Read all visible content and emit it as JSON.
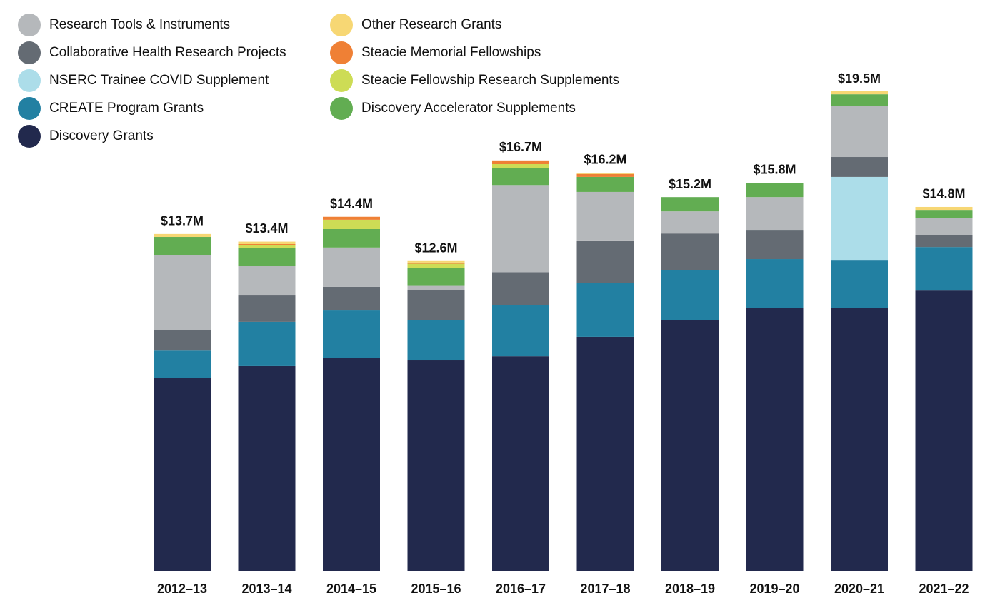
{
  "chart_data": {
    "type": "stacked_bar",
    "categories": [
      "2012–13",
      "2013–14",
      "2014–15",
      "2015–16",
      "2016–17",
      "2017–18",
      "2018–19",
      "2019–20",
      "2020–21",
      "2021–22"
    ],
    "series": [
      {
        "name": "Discovery Grants",
        "color": "#22294d",
        "values": [
          7.86,
          8.33,
          8.65,
          8.56,
          8.73,
          9.52,
          10.21,
          10.68,
          10.68,
          11.4
        ]
      },
      {
        "name": "CREATE Program Grants",
        "color": "#2280a2",
        "values": [
          1.1,
          1.8,
          1.94,
          1.63,
          2.09,
          2.18,
          2.03,
          2.0,
          1.94,
          1.77
        ]
      },
      {
        "name": "NSERC Trainee COVID Supplement",
        "color": "#acdde9",
        "values": [
          0,
          0,
          0,
          0,
          0,
          0,
          0,
          0,
          3.4,
          0
        ]
      },
      {
        "name": "Collaborative Health Research Projects",
        "color": "#646b73",
        "values": [
          0.84,
          1.07,
          0.96,
          1.25,
          1.33,
          1.71,
          1.48,
          1.16,
          0.81,
          0.49
        ]
      },
      {
        "name": "Research Tools & Instruments",
        "color": "#b5b8bb",
        "values": [
          3.05,
          1.19,
          1.6,
          0.15,
          3.54,
          2.0,
          0.9,
          1.36,
          2.06,
          0.7
        ]
      },
      {
        "name": "Discovery Accelerator Supplements",
        "color": "#62ad52",
        "values": [
          0.73,
          0.75,
          0.75,
          0.73,
          0.7,
          0.61,
          0.58,
          0.58,
          0.49,
          0.32
        ]
      },
      {
        "name": "Steacie Fellowship Research Supplements",
        "color": "#cddc55",
        "values": [
          0,
          0.1,
          0.38,
          0.17,
          0.15,
          0,
          0,
          0,
          0,
          0
        ]
      },
      {
        "name": "Steacie Memorial Fellowships",
        "color": "#ef8035",
        "values": [
          0,
          0.05,
          0.12,
          0.05,
          0.15,
          0.12,
          0,
          0,
          0,
          0
        ]
      },
      {
        "name": "Other Research Grants",
        "color": "#f7d774",
        "values": [
          0.12,
          0.1,
          0,
          0.06,
          0,
          0.05,
          0,
          0,
          0.12,
          0.12
        ]
      }
    ],
    "totals": {
      "values": [
        13.7,
        13.4,
        14.4,
        12.6,
        16.7,
        16.2,
        15.2,
        15.8,
        19.5,
        14.8
      ],
      "value_labels": [
        "$13.7M",
        "$13.4M",
        "$14.4M",
        "$12.6M",
        "$16.7M",
        "$16.2M",
        "$15.2M",
        "$15.8M",
        "$19.5M",
        "$14.8M"
      ]
    }
  }
}
